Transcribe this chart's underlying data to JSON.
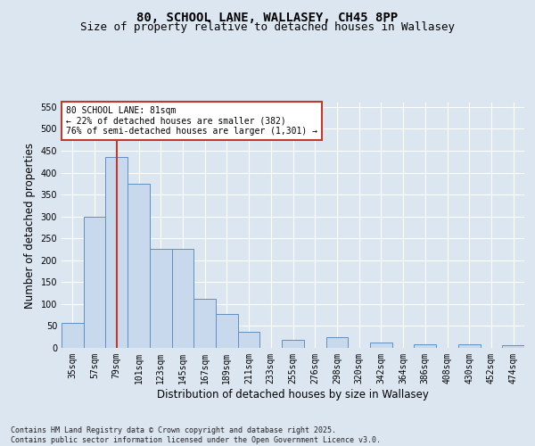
{
  "title": "80, SCHOOL LANE, WALLASEY, CH45 8PP",
  "subtitle": "Size of property relative to detached houses in Wallasey",
  "xlabel": "Distribution of detached houses by size in Wallasey",
  "ylabel": "Number of detached properties",
  "categories": [
    "35sqm",
    "57sqm",
    "79sqm",
    "101sqm",
    "123sqm",
    "145sqm",
    "167sqm",
    "189sqm",
    "211sqm",
    "233sqm",
    "255sqm",
    "276sqm",
    "298sqm",
    "320sqm",
    "342sqm",
    "364sqm",
    "386sqm",
    "408sqm",
    "430sqm",
    "452sqm",
    "474sqm"
  ],
  "values": [
    57,
    300,
    435,
    375,
    227,
    227,
    113,
    77,
    37,
    0,
    18,
    0,
    25,
    0,
    13,
    0,
    8,
    0,
    8,
    0,
    7
  ],
  "bar_color": "#c9d9ed",
  "bar_edge_color": "#6090c0",
  "vline_x_index": 2,
  "vline_color": "#c0392b",
  "annotation_text": "80 SCHOOL LANE: 81sqm\n← 22% of detached houses are smaller (382)\n76% of semi-detached houses are larger (1,301) →",
  "annotation_box_color": "#c0392b",
  "bg_color": "#dce6f0",
  "plot_bg_color": "#dce6f0",
  "ylim": [
    0,
    560
  ],
  "yticks": [
    0,
    50,
    100,
    150,
    200,
    250,
    300,
    350,
    400,
    450,
    500,
    550
  ],
  "footer": "Contains HM Land Registry data © Crown copyright and database right 2025.\nContains public sector information licensed under the Open Government Licence v3.0.",
  "title_fontsize": 10,
  "subtitle_fontsize": 9,
  "tick_fontsize": 7,
  "label_fontsize": 8.5,
  "footer_fontsize": 6
}
